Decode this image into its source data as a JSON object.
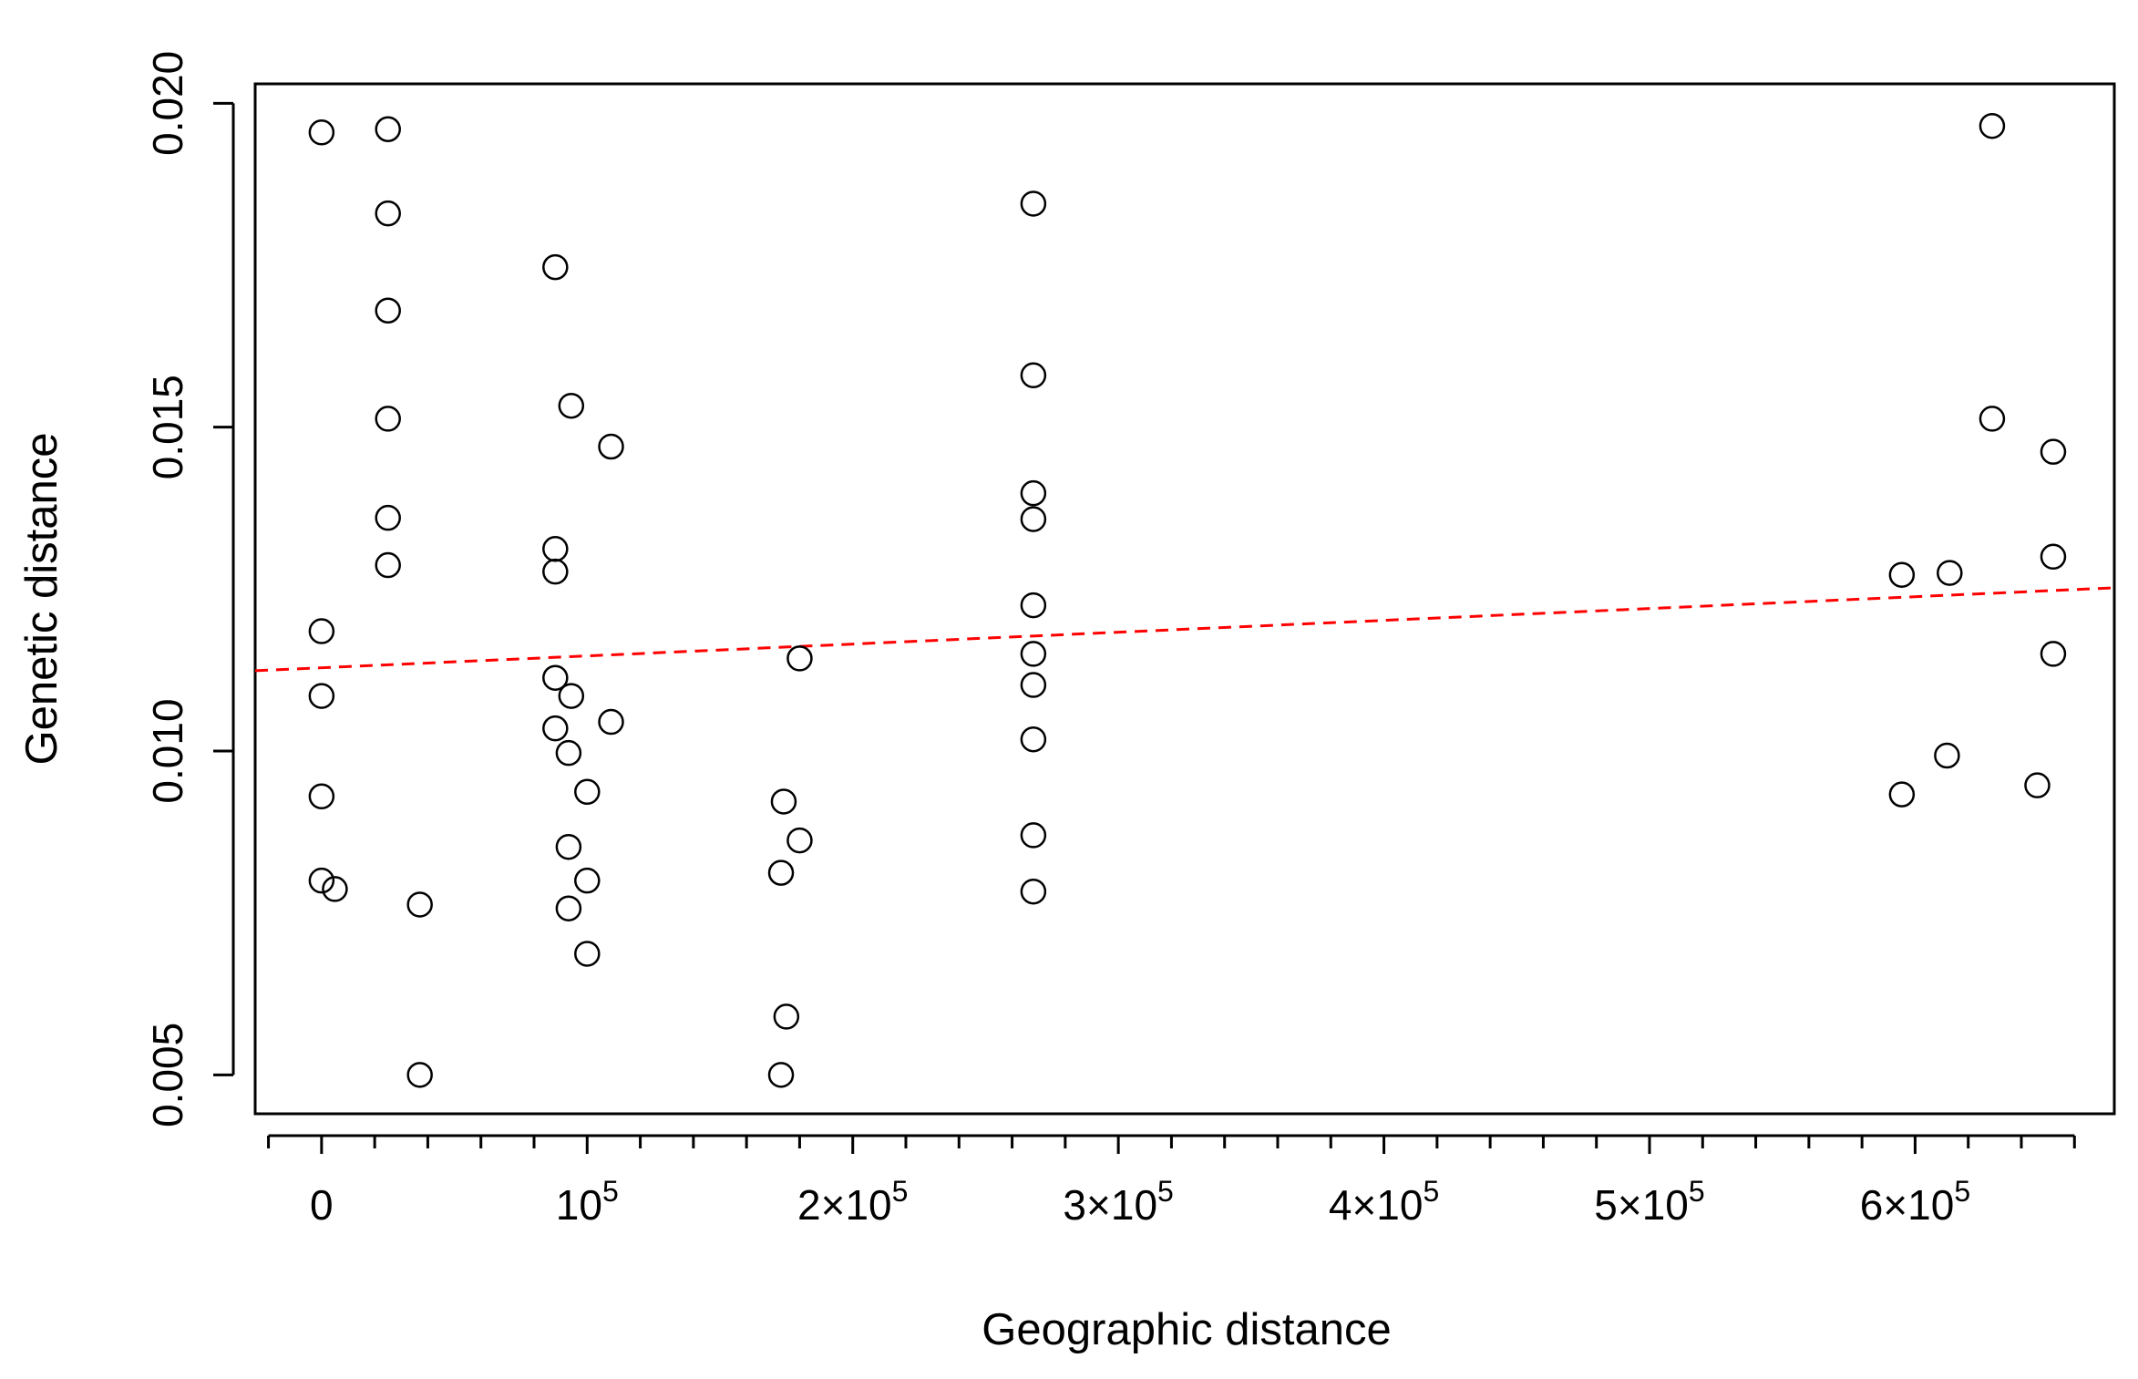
{
  "chart_data": {
    "type": "scatter",
    "xlabel": "Geographic distance",
    "ylabel": "Genetic distance",
    "xlim": [
      -25000,
      675000
    ],
    "ylim": [
      0.0044,
      0.0203
    ],
    "x_ticks": [
      0,
      100000,
      200000,
      300000,
      400000,
      500000,
      600000
    ],
    "x_tick_labels": [
      {
        "base": "0",
        "exp": ""
      },
      {
        "base": "10",
        "exp": "5"
      },
      {
        "base": "2×10",
        "exp": "5"
      },
      {
        "base": "3×10",
        "exp": "5"
      },
      {
        "base": "4×10",
        "exp": "5"
      },
      {
        "base": "5×10",
        "exp": "5"
      },
      {
        "base": "6×10",
        "exp": "5"
      }
    ],
    "y_ticks": [
      0.005,
      0.01,
      0.015,
      0.02
    ],
    "y_tick_labels": [
      "0.005",
      "0.010",
      "0.015",
      "0.020"
    ],
    "grid": false,
    "marker": "open-circle",
    "regression_line": {
      "style": "dashed",
      "color": "#ff0000",
      "x": [
        -25000,
        675000
      ],
      "y": [
        0.01124,
        0.01252
      ]
    },
    "points": [
      {
        "x": 0,
        "y": 0.01955
      },
      {
        "x": 0,
        "y": 0.01185
      },
      {
        "x": 0,
        "y": 0.01085
      },
      {
        "x": 0,
        "y": 0.0093
      },
      {
        "x": 0,
        "y": 0.008
      },
      {
        "x": 5000,
        "y": 0.00787
      },
      {
        "x": 25000,
        "y": 0.0196
      },
      {
        "x": 25000,
        "y": 0.0183
      },
      {
        "x": 25000,
        "y": 0.0168
      },
      {
        "x": 25000,
        "y": 0.01513
      },
      {
        "x": 25000,
        "y": 0.0136
      },
      {
        "x": 25000,
        "y": 0.01287
      },
      {
        "x": 37000,
        "y": 0.00763
      },
      {
        "x": 37000,
        "y": 0.005
      },
      {
        "x": 88000,
        "y": 0.01747
      },
      {
        "x": 88000,
        "y": 0.01312
      },
      {
        "x": 88000,
        "y": 0.01277
      },
      {
        "x": 88000,
        "y": 0.01113
      },
      {
        "x": 88000,
        "y": 0.01035
      },
      {
        "x": 94000,
        "y": 0.01533
      },
      {
        "x": 94000,
        "y": 0.01085
      },
      {
        "x": 93000,
        "y": 0.00997
      },
      {
        "x": 93000,
        "y": 0.00852
      },
      {
        "x": 93000,
        "y": 0.00757
      },
      {
        "x": 100000,
        "y": 0.00937
      },
      {
        "x": 100000,
        "y": 0.008
      },
      {
        "x": 100000,
        "y": 0.00687
      },
      {
        "x": 109000,
        "y": 0.0147
      },
      {
        "x": 109000,
        "y": 0.01045
      },
      {
        "x": 174000,
        "y": 0.00922
      },
      {
        "x": 173000,
        "y": 0.00812
      },
      {
        "x": 175000,
        "y": 0.0059
      },
      {
        "x": 173000,
        "y": 0.005
      },
      {
        "x": 180000,
        "y": 0.01143
      },
      {
        "x": 180000,
        "y": 0.00862
      },
      {
        "x": 268000,
        "y": 0.01845
      },
      {
        "x": 268000,
        "y": 0.0158
      },
      {
        "x": 268000,
        "y": 0.01398
      },
      {
        "x": 268000,
        "y": 0.01358
      },
      {
        "x": 268000,
        "y": 0.01225
      },
      {
        "x": 268000,
        "y": 0.0115
      },
      {
        "x": 268000,
        "y": 0.01102
      },
      {
        "x": 268000,
        "y": 0.01018
      },
      {
        "x": 268000,
        "y": 0.0087
      },
      {
        "x": 268000,
        "y": 0.00783
      },
      {
        "x": 595000,
        "y": 0.01272
      },
      {
        "x": 595000,
        "y": 0.00933
      },
      {
        "x": 612000,
        "y": 0.00993
      },
      {
        "x": 613000,
        "y": 0.01275
      },
      {
        "x": 629000,
        "y": 0.01965
      },
      {
        "x": 629000,
        "y": 0.01513
      },
      {
        "x": 646000,
        "y": 0.00947
      },
      {
        "x": 652000,
        "y": 0.01462
      },
      {
        "x": 652000,
        "y": 0.013
      },
      {
        "x": 652000,
        "y": 0.0115
      }
    ]
  }
}
